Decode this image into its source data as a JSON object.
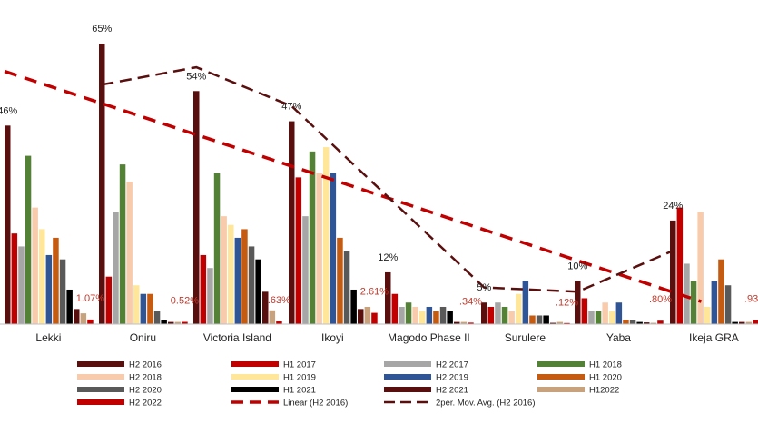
{
  "chart_data": {
    "type": "bar",
    "title": "",
    "xlabel": "",
    "ylabel": "",
    "ylim": [
      0,
      70
    ],
    "categories": [
      "Lekki",
      "Oniru",
      "Victoria Island",
      "Ikoyi",
      "Magodo Phase II",
      "Surulere",
      "Yaba",
      "Ikeja GRA"
    ],
    "series": [
      {
        "name": "H2 2016",
        "color": "#5a0f0f",
        "values": [
          46,
          65,
          54,
          47,
          12,
          5,
          10,
          24
        ]
      },
      {
        "name": "H1 2017",
        "color": "#c00000",
        "values": [
          21,
          11,
          16,
          34,
          7,
          4,
          6,
          27
        ]
      },
      {
        "name": "H2 2017",
        "color": "#a6a6a6",
        "values": [
          18,
          26,
          13,
          25,
          4,
          5,
          3,
          14
        ]
      },
      {
        "name": "H1 2018",
        "color": "#538135",
        "values": [
          39,
          37,
          35,
          40,
          5,
          4,
          3,
          10
        ]
      },
      {
        "name": "H2 2018",
        "color": "#f8cbad",
        "values": [
          27,
          33,
          25,
          35,
          4,
          3,
          5,
          26
        ]
      },
      {
        "name": "H1 2019",
        "color": "#ffe699",
        "values": [
          22,
          9,
          23,
          41,
          3,
          7,
          3,
          4
        ]
      },
      {
        "name": "H2 2019",
        "color": "#2f5597",
        "values": [
          16,
          7,
          20,
          35,
          4,
          10,
          5,
          10
        ]
      },
      {
        "name": "H1 2020",
        "color": "#c55a11",
        "values": [
          20,
          7,
          22,
          20,
          3,
          2,
          1,
          15
        ]
      },
      {
        "name": "H2 2020",
        "color": "#595959",
        "values": [
          15,
          3,
          18,
          17,
          4,
          2,
          1,
          9
        ]
      },
      {
        "name": "H1 2021",
        "color": "#000000",
        "values": [
          8,
          1,
          15,
          8,
          3,
          2,
          0.5,
          0.5
        ]
      },
      {
        "name": "H2 2021",
        "color": "#5a0f0f",
        "values": [
          3.5,
          0.5,
          7.5,
          3.5,
          0.5,
          0.3,
          0.4,
          0.5
        ]
      },
      {
        "name": "H12022",
        "color": "#c8a27c",
        "values": [
          2.5,
          0.5,
          3.2,
          4,
          0.5,
          0.5,
          0.3,
          0.5
        ]
      },
      {
        "name": "H2 2022",
        "color": "#c00000",
        "values": [
          1.07,
          0.52,
          0.63,
          2.61,
          0.34,
          0.12,
          0.8,
          0.93
        ]
      }
    ],
    "top_labels": [
      "46%",
      "65%",
      "54%",
      "47%",
      "12%",
      "5%",
      "10%",
      "24%"
    ],
    "h2_2022_labels": [
      "1.07%",
      "0.52%",
      ".63%",
      "2.61%",
      ".34%",
      ".12%",
      ".80%",
      ".93%"
    ],
    "trendlines": [
      {
        "name": "Linear (H2 2016)",
        "type": "linear",
        "of_series": "H2 2016",
        "color": "#c00000"
      },
      {
        "name": "2per. Mov. Avg. (H2 2016)",
        "type": "moving_average",
        "period": 2,
        "of_series": "H2 2016",
        "color": "#5a0f0f"
      }
    ],
    "legend_position": "bottom",
    "grid": false
  }
}
